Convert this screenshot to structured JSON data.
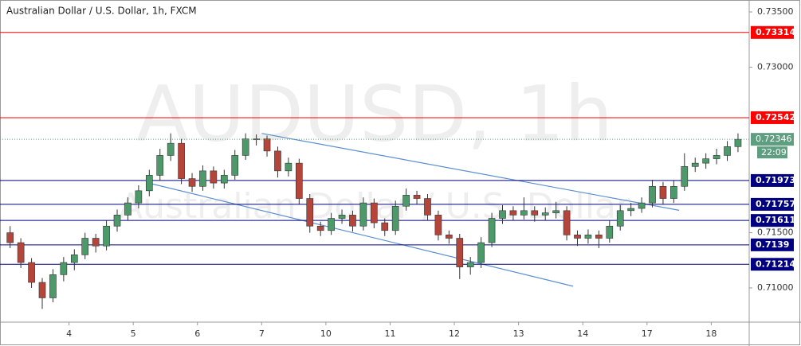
{
  "chart_data": {
    "type": "candlestick",
    "title": "Australian Dollar / U.S. Dollar, 1h, FXCM",
    "watermark": [
      "AUDUSD, 1h",
      "Australian Dollar / U.S. Dollar"
    ],
    "categories": [
      null,
      null,
      null,
      null,
      null,
      null,
      "4",
      null,
      null,
      null,
      null,
      null,
      "5",
      null,
      null,
      null,
      null,
      null,
      "6",
      null,
      null,
      null,
      null,
      null,
      "7",
      null,
      null,
      null,
      null,
      null,
      "10",
      null,
      null,
      null,
      null,
      null,
      "11",
      null,
      null,
      null,
      null,
      null,
      "12",
      null,
      null,
      null,
      null,
      null,
      "13",
      null,
      null,
      null,
      null,
      null,
      "14",
      null,
      null,
      null,
      null,
      null,
      "17",
      null,
      null,
      null,
      null,
      null,
      "18",
      null,
      null
    ],
    "open": [
      0.715,
      0.7141,
      0.7123,
      0.7105,
      0.7091,
      0.7112,
      0.7123,
      0.713,
      0.7145,
      0.7138,
      0.7156,
      0.7166,
      0.7177,
      0.7188,
      0.7202,
      0.722,
      0.7231,
      0.7199,
      0.7192,
      0.7206,
      0.7195,
      0.7202,
      0.722,
      0.7235,
      0.7235,
      0.7224,
      0.7206,
      0.7213,
      0.7181,
      0.7156,
      0.7152,
      0.7163,
      0.7166,
      0.7156,
      0.7177,
      0.7159,
      0.7152,
      0.7174,
      0.7184,
      0.7181,
      0.7166,
      0.7148,
      0.7145,
      0.7119,
      0.7123,
      0.7141,
      0.7163,
      0.717,
      0.7166,
      0.717,
      0.7166,
      0.7168,
      0.717,
      0.7148,
      0.7145,
      0.7148,
      0.7145,
      0.7156,
      0.717,
      0.7172,
      0.7177,
      0.7192,
      0.7181,
      0.7192,
      0.721,
      0.7213,
      0.7217,
      0.722,
      0.7228
    ],
    "high": [
      0.7156,
      0.7145,
      0.7127,
      0.7109,
      0.7117,
      0.7128,
      0.7135,
      0.715,
      0.7149,
      0.7161,
      0.7171,
      0.7182,
      0.7193,
      0.7207,
      0.7226,
      0.724,
      0.7235,
      0.7204,
      0.7211,
      0.721,
      0.7207,
      0.7225,
      0.724,
      0.7239,
      0.7238,
      0.7228,
      0.7218,
      0.7217,
      0.7185,
      0.716,
      0.7168,
      0.7171,
      0.717,
      0.7182,
      0.7181,
      0.7163,
      0.7179,
      0.719,
      0.7188,
      0.7185,
      0.717,
      0.7152,
      0.7149,
      0.7128,
      0.7146,
      0.7168,
      0.7175,
      0.7174,
      0.7182,
      0.7174,
      0.7173,
      0.7178,
      0.7174,
      0.7152,
      0.7153,
      0.7152,
      0.7161,
      0.7175,
      0.7177,
      0.7182,
      0.7198,
      0.7196,
      0.7197,
      0.7222,
      0.7218,
      0.7222,
      0.7226,
      0.7233,
      0.724
    ],
    "low": [
      0.7136,
      0.7118,
      0.71,
      0.7081,
      0.7087,
      0.7106,
      0.7116,
      0.7126,
      0.7132,
      0.7134,
      0.7151,
      0.7161,
      0.7172,
      0.7183,
      0.7197,
      0.7215,
      0.7194,
      0.7187,
      0.7188,
      0.719,
      0.719,
      0.7198,
      0.7216,
      0.7229,
      0.7219,
      0.72,
      0.7201,
      0.7176,
      0.715,
      0.7147,
      0.7148,
      0.7158,
      0.7151,
      0.7152,
      0.7154,
      0.7147,
      0.7148,
      0.717,
      0.7176,
      0.7161,
      0.7143,
      0.714,
      0.7108,
      0.7112,
      0.7118,
      0.7137,
      0.7158,
      0.7161,
      0.7162,
      0.716,
      0.7161,
      0.7163,
      0.7143,
      0.7138,
      0.714,
      0.7136,
      0.7141,
      0.7152,
      0.7165,
      0.7168,
      0.7173,
      0.7176,
      0.7177,
      0.7188,
      0.7205,
      0.7208,
      0.7212,
      0.7215,
      0.7223
    ],
    "close": [
      0.7141,
      0.7123,
      0.7105,
      0.7091,
      0.7112,
      0.7123,
      0.713,
      0.7145,
      0.7138,
      0.7156,
      0.7166,
      0.7177,
      0.7188,
      0.7202,
      0.722,
      0.7231,
      0.7199,
      0.7192,
      0.7206,
      0.7195,
      0.7202,
      0.722,
      0.7235,
      0.7235,
      0.7224,
      0.7206,
      0.7213,
      0.7181,
      0.7156,
      0.7152,
      0.7163,
      0.7166,
      0.7156,
      0.7177,
      0.7159,
      0.7152,
      0.7174,
      0.7184,
      0.7181,
      0.7166,
      0.7148,
      0.7145,
      0.7119,
      0.7123,
      0.7141,
      0.7163,
      0.717,
      0.7166,
      0.717,
      0.7166,
      0.7168,
      0.717,
      0.7148,
      0.7145,
      0.7148,
      0.7145,
      0.7156,
      0.717,
      0.7172,
      0.7177,
      0.7192,
      0.7181,
      0.7192,
      0.721,
      0.7213,
      0.7217,
      0.722,
      0.7228,
      0.72346
    ],
    "up_color": "#4c9a6a",
    "down_color": "#b5443a",
    "ylim": [
      0.7069,
      0.73608
    ],
    "yticks": [
      {
        "value": 0.735,
        "label": "0.73500"
      },
      {
        "value": 0.73,
        "label": "0.73000"
      },
      {
        "value": 0.715,
        "label": "0.71500"
      },
      {
        "value": 0.71,
        "label": "0.71000"
      }
    ],
    "levels": [
      {
        "value": 0.73314,
        "color": "#ff0000"
      },
      {
        "value": 0.72542,
        "color": "#ff0000"
      },
      {
        "value": 0.71973,
        "color": "#000080"
      },
      {
        "value": 0.71757,
        "color": "#000080"
      },
      {
        "value": 0.71611,
        "color": "#000080"
      },
      {
        "value": 0.7139,
        "color": "#000080"
      },
      {
        "value": 0.71214,
        "color": "#000080"
      }
    ],
    "last_price": 0.72346,
    "last_color": "#5f9e80",
    "countdown": "22:09",
    "trendlines": [
      {
        "x": [
          23.5,
          62.5
        ],
        "y": [
          0.724,
          0.71703
        ],
        "color": "#5b8fd0"
      },
      {
        "x": [
          12.9,
          52.6
        ],
        "y": [
          0.71951,
          0.71015
        ],
        "color": "#5b8fd0"
      }
    ]
  }
}
